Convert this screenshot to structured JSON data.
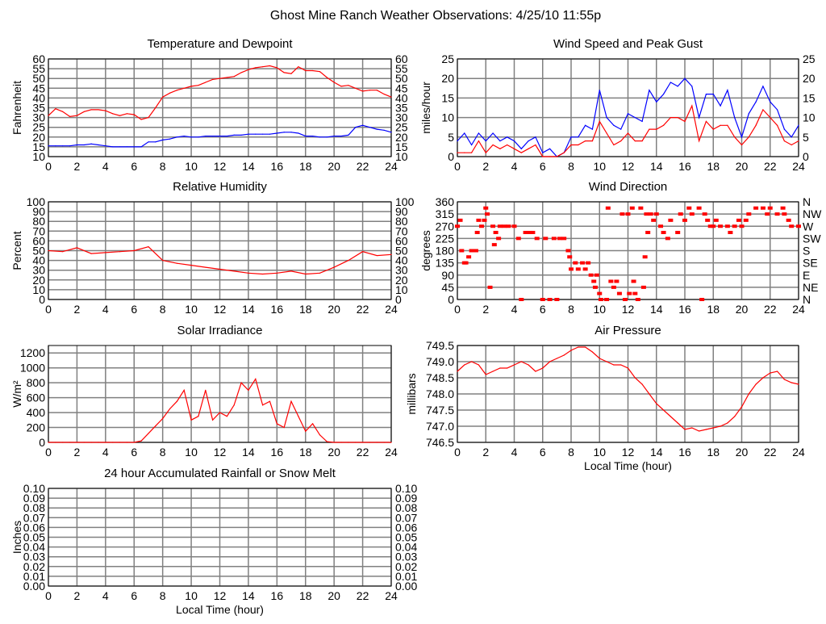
{
  "title": "Ghost Mine Ranch Weather Observations: 4/25/10 11:55p",
  "chart_data": [
    {
      "id": "temp",
      "type": "line",
      "title": "Temperature and Dewpoint",
      "ylabel": "Fahrenheit",
      "xlabel": "",
      "xlim": [
        0,
        24
      ],
      "ylim": [
        10,
        60
      ],
      "yticks": [
        "10",
        "15",
        "20",
        "25",
        "30",
        "35",
        "40",
        "45",
        "50",
        "55",
        "60"
      ],
      "right_labels": [
        "10",
        "15",
        "20",
        "25",
        "30",
        "35",
        "40",
        "45",
        "50",
        "55",
        "60"
      ],
      "xticks": [
        "0",
        "2",
        "4",
        "6",
        "8",
        "10",
        "12",
        "14",
        "16",
        "18",
        "20",
        "22",
        "24"
      ],
      "grid": true,
      "x_step": 0.5,
      "series": [
        {
          "name": "Temperature",
          "color": "#ff0000",
          "values": [
            31,
            34.5,
            33,
            30.5,
            31,
            33,
            34,
            34,
            33.5,
            32,
            31,
            32,
            31.5,
            29,
            30,
            35,
            40.5,
            42.5,
            44,
            45,
            46,
            46.5,
            48,
            49.5,
            50,
            50.5,
            51,
            53,
            54.5,
            55.5,
            56,
            56.5,
            55.5,
            53,
            52.5,
            56,
            54,
            54,
            53.5,
            50.5,
            48,
            46,
            46.5,
            45,
            43.5,
            44,
            44,
            42,
            40.5
          ]
        },
        {
          "name": "Dewpoint",
          "color": "#0000ff",
          "values": [
            15.5,
            15.5,
            15.5,
            15.5,
            16,
            16,
            16.5,
            16,
            15.5,
            15,
            15,
            15,
            15,
            15,
            17.5,
            17.5,
            18.5,
            19,
            20,
            20.5,
            20,
            20,
            20.5,
            20.5,
            20.5,
            20.5,
            21,
            21,
            21.5,
            21.5,
            21.5,
            21.5,
            22,
            22.5,
            22.5,
            22,
            20.5,
            20.5,
            20,
            20,
            20.5,
            20.5,
            21,
            25,
            26,
            25,
            24,
            23.5,
            22.5
          ]
        }
      ]
    },
    {
      "id": "wind",
      "type": "line",
      "title": "Wind Speed and Peak Gust",
      "ylabel": "miles/hour",
      "xlabel": "",
      "xlim": [
        0,
        24
      ],
      "ylim": [
        0,
        25
      ],
      "yticks": [
        "0",
        "5",
        "10",
        "15",
        "20",
        "25"
      ],
      "right_labels": [
        "0",
        "5",
        "10",
        "15",
        "20",
        "25"
      ],
      "xticks": [
        "0",
        "2",
        "4",
        "6",
        "8",
        "10",
        "12",
        "14",
        "16",
        "18",
        "20",
        "22",
        "24"
      ],
      "grid": true,
      "x_step": 0.5,
      "series": [
        {
          "name": "Peak Gust",
          "color": "#0000ff",
          "values": [
            4,
            6,
            3,
            6,
            4,
            6,
            4,
            5,
            4,
            2,
            4,
            5,
            1,
            2,
            0,
            1,
            5,
            5,
            8,
            7,
            17,
            10,
            8,
            7,
            11,
            10,
            9,
            17,
            14,
            16,
            19,
            18,
            20,
            18,
            10,
            16,
            16,
            13,
            17,
            10,
            5,
            11,
            14,
            18,
            14,
            12,
            7,
            5,
            8
          ]
        },
        {
          "name": "Wind Speed",
          "color": "#ff0000",
          "values": [
            1,
            1,
            1,
            4,
            1,
            3,
            2,
            3,
            2,
            1,
            2,
            3,
            0,
            0,
            0,
            1,
            3,
            3,
            4,
            4,
            9,
            6,
            3,
            4,
            6,
            4,
            4,
            7,
            7,
            8,
            10,
            10,
            9,
            13,
            4,
            9,
            7,
            8,
            8,
            5,
            3,
            5,
            8,
            12,
            10,
            8,
            4,
            3,
            4
          ]
        }
      ]
    },
    {
      "id": "hum",
      "type": "line",
      "title": "Relative Humidity",
      "ylabel": "Percent",
      "xlabel": "",
      "xlim": [
        0,
        24
      ],
      "ylim": [
        0,
        100
      ],
      "yticks": [
        "0",
        "10",
        "20",
        "30",
        "40",
        "50",
        "60",
        "70",
        "80",
        "90",
        "100"
      ],
      "right_labels": [
        "0",
        "10",
        "20",
        "30",
        "40",
        "50",
        "60",
        "70",
        "80",
        "90",
        "100"
      ],
      "xticks": [
        "0",
        "2",
        "4",
        "6",
        "8",
        "10",
        "12",
        "14",
        "16",
        "18",
        "20",
        "22",
        "24"
      ],
      "grid": true,
      "x_step": 1,
      "series": [
        {
          "name": "Relative Humidity",
          "color": "#ff0000",
          "values": [
            50,
            49,
            53,
            47,
            48,
            49,
            50,
            54,
            40,
            37,
            35,
            33,
            31,
            29,
            27,
            26,
            27,
            29,
            26,
            27,
            33,
            40,
            49,
            45,
            46
          ]
        }
      ]
    },
    {
      "id": "dir",
      "type": "scatter",
      "title": "Wind Direction",
      "ylabel": "degrees",
      "xlabel": "",
      "xlim": [
        0,
        24
      ],
      "ylim": [
        0,
        360
      ],
      "yticks": [
        "0",
        "45",
        "90",
        "135",
        "180",
        "225",
        "270",
        "315",
        "360"
      ],
      "right_labels": [
        "N",
        "NE",
        "E",
        "SE",
        "S",
        "SW",
        "W",
        "NW",
        "N"
      ],
      "xticks": [
        "0",
        "2",
        "4",
        "6",
        "8",
        "10",
        "12",
        "14",
        "16",
        "18",
        "20",
        "22",
        "24"
      ],
      "grid": true,
      "series": [
        {
          "name": "Wind Direction",
          "color": "#ff0000",
          "points": [
            [
              0,
              270
            ],
            [
              0.2,
              292
            ],
            [
              0.3,
              180
            ],
            [
              0.5,
              135
            ],
            [
              0.6,
              135
            ],
            [
              0.8,
              157
            ],
            [
              1,
              180
            ],
            [
              1.3,
              180
            ],
            [
              1.4,
              247
            ],
            [
              1.5,
              292
            ],
            [
              1.7,
              270
            ],
            [
              1.9,
              292
            ],
            [
              2,
              337
            ],
            [
              2.1,
              315
            ],
            [
              2.3,
              45
            ],
            [
              2.5,
              270
            ],
            [
              2.6,
              202
            ],
            [
              2.7,
              247
            ],
            [
              2.9,
              225
            ],
            [
              3,
              270
            ],
            [
              3.3,
              270
            ],
            [
              3.6,
              270
            ],
            [
              4,
              270
            ],
            [
              4.3,
              225
            ],
            [
              4.5,
              0
            ],
            [
              4.8,
              247
            ],
            [
              5.1,
              247
            ],
            [
              5.3,
              247
            ],
            [
              5.6,
              225
            ],
            [
              6,
              0
            ],
            [
              6.2,
              225
            ],
            [
              6.5,
              0
            ],
            [
              6.8,
              225
            ],
            [
              7,
              0
            ],
            [
              7.2,
              225
            ],
            [
              7.5,
              225
            ],
            [
              7.8,
              180
            ],
            [
              7.9,
              157
            ],
            [
              8,
              112
            ],
            [
              8.3,
              135
            ],
            [
              8.5,
              112
            ],
            [
              8.8,
              135
            ],
            [
              9,
              112
            ],
            [
              9.2,
              135
            ],
            [
              9.4,
              90
            ],
            [
              9.6,
              67
            ],
            [
              9.7,
              45
            ],
            [
              9.8,
              90
            ],
            [
              10,
              22
            ],
            [
              10.1,
              0
            ],
            [
              10.5,
              0
            ],
            [
              10.6,
              337
            ],
            [
              10.8,
              67
            ],
            [
              11,
              45
            ],
            [
              11.2,
              67
            ],
            [
              11.4,
              22
            ],
            [
              11.6,
              315
            ],
            [
              11.8,
              0
            ],
            [
              12,
              315
            ],
            [
              12.1,
              22
            ],
            [
              12.3,
              337
            ],
            [
              12.4,
              67
            ],
            [
              12.5,
              22
            ],
            [
              12.7,
              0
            ],
            [
              12.9,
              337
            ],
            [
              13.1,
              45
            ],
            [
              13.2,
              157
            ],
            [
              13.3,
              315
            ],
            [
              13.4,
              247
            ],
            [
              13.6,
              315
            ],
            [
              13.8,
              292
            ],
            [
              14,
              315
            ],
            [
              14.3,
              270
            ],
            [
              14.5,
              247
            ],
            [
              14.8,
              225
            ],
            [
              15,
              292
            ],
            [
              15.5,
              247
            ],
            [
              15.7,
              315
            ],
            [
              16,
              292
            ],
            [
              16.3,
              337
            ],
            [
              16.5,
              315
            ],
            [
              17,
              337
            ],
            [
              17.2,
              0
            ],
            [
              17.4,
              315
            ],
            [
              17.6,
              292
            ],
            [
              17.8,
              270
            ],
            [
              18,
              270
            ],
            [
              18.2,
              292
            ],
            [
              18.5,
              270
            ],
            [
              19,
              270
            ],
            [
              19.2,
              247
            ],
            [
              19.5,
              270
            ],
            [
              19.8,
              292
            ],
            [
              20,
              270
            ],
            [
              20.3,
              292
            ],
            [
              20.5,
              315
            ],
            [
              21,
              337
            ],
            [
              21.5,
              337
            ],
            [
              21.8,
              315
            ],
            [
              22,
              337
            ],
            [
              22.5,
              315
            ],
            [
              22.9,
              337
            ],
            [
              23,
              315
            ],
            [
              23.3,
              292
            ],
            [
              23.5,
              270
            ],
            [
              24,
              270
            ]
          ]
        }
      ]
    },
    {
      "id": "solar",
      "type": "line",
      "title": "Solar Irradiance",
      "ylabel": "W/m²",
      "xlabel": "",
      "xlim": [
        0,
        24
      ],
      "ylim": [
        0,
        1300
      ],
      "yticks": [
        "0",
        "200",
        "400",
        "600",
        "800",
        "1000",
        "1200"
      ],
      "right_labels": [],
      "xticks": [
        "0",
        "2",
        "4",
        "6",
        "8",
        "10",
        "12",
        "14",
        "16",
        "18",
        "20",
        "22",
        "24"
      ],
      "grid": true,
      "x_step": 0.5,
      "series": [
        {
          "name": "Solar Irradiance",
          "color": "#ff0000",
          "values": [
            0,
            0,
            0,
            0,
            0,
            0,
            0,
            0,
            0,
            0,
            0,
            0,
            0,
            20,
            120,
            220,
            320,
            450,
            550,
            700,
            300,
            350,
            700,
            300,
            400,
            350,
            500,
            800,
            700,
            850,
            500,
            550,
            250,
            200,
            550,
            350,
            150,
            250,
            100,
            10,
            0,
            0,
            0,
            0,
            0,
            0,
            0,
            0,
            0
          ]
        }
      ]
    },
    {
      "id": "press",
      "type": "line",
      "title": "Air Pressure",
      "ylabel": "millibars",
      "xlabel": "Local Time (hour)",
      "xlim": [
        0,
        24
      ],
      "ylim": [
        746.5,
        749.5
      ],
      "yticks": [
        "746.5",
        "747.0",
        "747.5",
        "748.0",
        "748.5",
        "749.0",
        "749.5"
      ],
      "right_labels": [],
      "xticks": [
        "0",
        "2",
        "4",
        "6",
        "8",
        "10",
        "12",
        "14",
        "16",
        "18",
        "20",
        "22",
        "24"
      ],
      "grid": true,
      "x_step": 0.5,
      "series": [
        {
          "name": "Air Pressure",
          "color": "#ff0000",
          "values": [
            748.7,
            748.9,
            749.0,
            748.9,
            748.6,
            748.7,
            748.8,
            748.8,
            748.9,
            749.0,
            748.9,
            748.7,
            748.8,
            749.0,
            749.1,
            749.2,
            749.35,
            749.45,
            749.45,
            749.3,
            749.1,
            749.0,
            748.9,
            748.9,
            748.8,
            748.5,
            748.3,
            748.0,
            747.7,
            747.5,
            747.3,
            747.1,
            746.9,
            746.95,
            746.85,
            746.9,
            746.95,
            747.0,
            747.1,
            747.3,
            747.6,
            748.0,
            748.3,
            748.5,
            748.65,
            748.7,
            748.45,
            748.35,
            748.3
          ]
        }
      ]
    },
    {
      "id": "rain",
      "type": "line",
      "title": "24 hour Accumulated Rainfall or Snow Melt",
      "ylabel": "Inches",
      "xlabel": "Local Time (hour)",
      "xlim": [
        0,
        24
      ],
      "ylim": [
        0,
        0.1
      ],
      "yticks": [
        "0.00",
        "0.01",
        "0.02",
        "0.03",
        "0.04",
        "0.05",
        "0.06",
        "0.07",
        "0.08",
        "0.09",
        "0.10"
      ],
      "right_labels": [
        "0.00",
        "0.01",
        "0.02",
        "0.03",
        "0.04",
        "0.05",
        "0.06",
        "0.07",
        "0.08",
        "0.09",
        "0.10"
      ],
      "xticks": [
        "0",
        "2",
        "4",
        "6",
        "8",
        "10",
        "12",
        "14",
        "16",
        "18",
        "20",
        "22",
        "24"
      ],
      "grid": true,
      "series": []
    }
  ]
}
